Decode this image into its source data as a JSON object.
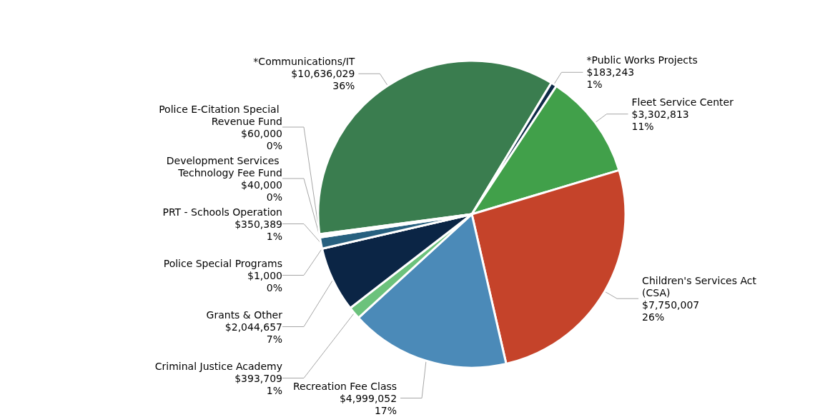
{
  "chart_data": {
    "type": "pie",
    "categories": [
      "*Communications/IT",
      "*Public Works Projects",
      "Fleet Service Center",
      "Children's Services Act (CSA)",
      "Recreation Fee Class",
      "Criminal Justice Academy",
      "Grants & Other",
      "Police Special Programs",
      "PRT - Schools Operation",
      "Development Services Technology Fee Fund",
      "Police E-Citation Special Revenue Fund"
    ],
    "values": [
      10636029,
      183243,
      3302813,
      7750007,
      4999052,
      393709,
      2044657,
      1000,
      350389,
      40000,
      60000
    ],
    "value_labels": [
      "$10,636,029\n36%",
      "$183,243\n1%",
      "$3,302,813\n11%",
      "$7,750,007\n26%",
      "$4,999,052\n17%",
      "$393,709\n1%",
      "$2,044,657\n7%",
      "$1,000\n0%",
      "$350,389\n1%",
      "$40,000\n0%",
      "$60,000\n0%"
    ],
    "colors": [
      "#3a7d4f",
      "#0e2a47",
      "#41a04a",
      "#c5432a",
      "#4b8ab8",
      "#6cc27c",
      "#0b2545",
      "#8fb4d0",
      "#27607f",
      "#5f8a5a",
      "#a8c9a0"
    ],
    "legend": false
  }
}
